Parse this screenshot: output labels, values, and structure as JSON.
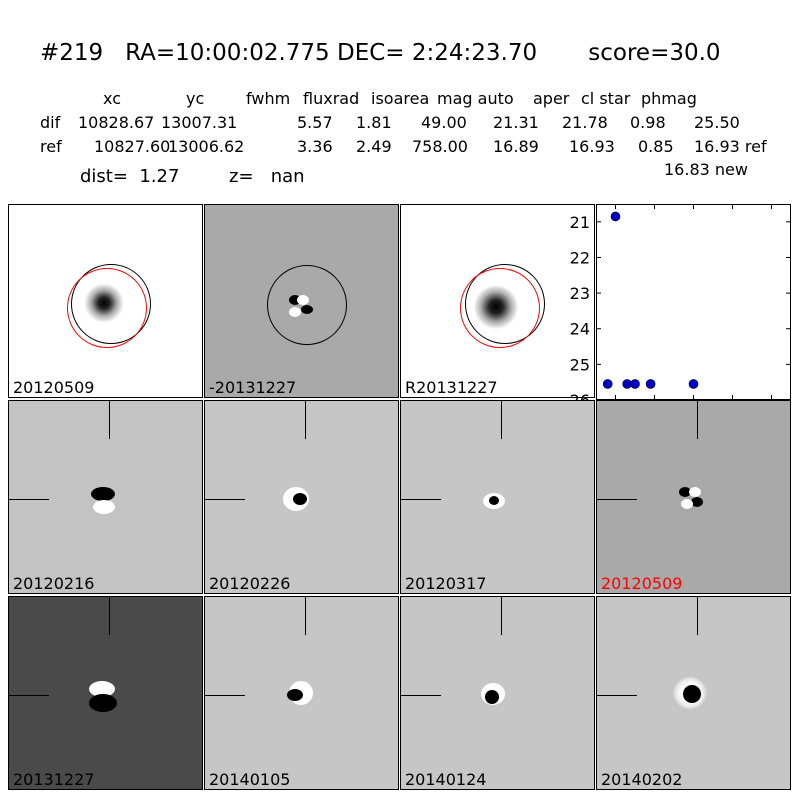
{
  "title": "#219   RA=10:00:02.775 DEC= 2:24:23.70       score=30.0",
  "table": {
    "header": [
      "xc",
      "yc",
      "fwhm",
      "fluxrad",
      "isoarea",
      "mag auto",
      "aper",
      "cl star",
      "phmag"
    ],
    "rows": [
      {
        "label": "dif",
        "values": [
          "10828.67",
          "13007.31",
          "5.57",
          "1.81",
          "49.00",
          "21.31",
          "21.78",
          "0.98",
          "25.50"
        ],
        "suffix": ""
      },
      {
        "label": "ref",
        "values": [
          "10827.60",
          "13006.62",
          "3.36",
          "2.49",
          "758.00",
          "16.89",
          "16.93",
          "0.85",
          "16.93"
        ],
        "suffix": "ref"
      }
    ],
    "new_mag": "16.83 new"
  },
  "dist": "dist=  1.27",
  "z": "z=   nan",
  "panels": [
    {
      "label": "20120509",
      "label_color": "#000000"
    },
    {
      "label": "-20131227",
      "label_color": "#000000"
    },
    {
      "label": "R20131227",
      "label_color": "#000000"
    },
    {
      "label": "20120216",
      "label_color": "#000000"
    },
    {
      "label": "20120226",
      "label_color": "#000000"
    },
    {
      "label": "20120317",
      "label_color": "#000000"
    },
    {
      "label": "20120509",
      "label_color": "#ff0000"
    },
    {
      "label": "20131227",
      "label_color": "#000000"
    },
    {
      "label": "20140105",
      "label_color": "#000000"
    },
    {
      "label": "20140124",
      "label_color": "#000000"
    },
    {
      "label": "20140202",
      "label_color": "#000000"
    }
  ],
  "chart_data": {
    "type": "scatter",
    "xlim": [
      -125,
      125
    ],
    "ylim": [
      26,
      20.5
    ],
    "y_inverted": true,
    "xticks": [
      -100,
      -50,
      0,
      50,
      100
    ],
    "yticks": [
      21,
      22,
      23,
      24,
      25,
      26
    ],
    "marker_color": "#0000cc",
    "series": [
      {
        "points": [
          [
            -110,
            25.55
          ],
          [
            -100,
            20.85
          ],
          [
            -85,
            25.55
          ],
          [
            -75,
            25.55
          ],
          [
            -55,
            25.55
          ],
          [
            0,
            25.55
          ]
        ]
      }
    ]
  }
}
